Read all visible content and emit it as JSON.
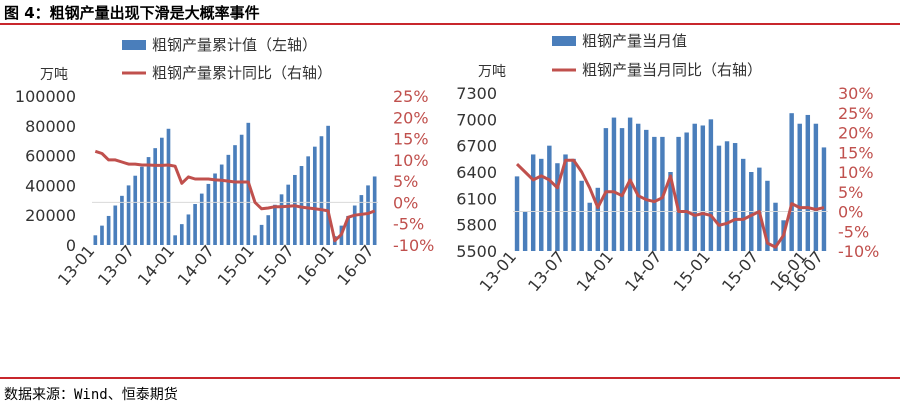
{
  "page": {
    "figure_title": "图 4：粗钢产量出现下滑是大概率事件",
    "source": "数据来源：Wind、恒泰期货",
    "colors": {
      "bar": "#4a7ebb",
      "line": "#c0504d",
      "rule": "#c8262c",
      "axis_right": "#c0504d"
    }
  },
  "chart_data": [
    {
      "type": "bar",
      "unit_left": "万吨",
      "x_tick_labels": [
        "13-01",
        "13-07",
        "14-01",
        "14-07",
        "15-01",
        "15-07",
        "16-01",
        "16-07"
      ],
      "y_left": {
        "min": 0,
        "max": 100000,
        "ticks": [
          "100000",
          "80000",
          "60000",
          "40000",
          "20000",
          "0"
        ]
      },
      "y_right": {
        "min": -10,
        "max": 25,
        "ticks": [
          "25%",
          "20%",
          "15%",
          "10%",
          "5%",
          "0%",
          "-5%",
          "-10%"
        ]
      },
      "legend": [
        "粗钢产量累计值（左轴）",
        "粗钢产量累计同比（右轴）"
      ],
      "legend_position": "top",
      "grid": false,
      "series": [
        {
          "name": "粗钢产量累计值（左轴）",
          "kind": "bar",
          "axis": "left",
          "values": [
            6500,
            13000,
            19500,
            26500,
            33000,
            40000,
            46500,
            52500,
            59000,
            65000,
            72000,
            78000,
            6500,
            14000,
            20500,
            27500,
            34500,
            41000,
            48000,
            54000,
            60500,
            67000,
            74000,
            82000,
            6500,
            13500,
            20000,
            27000,
            34000,
            40500,
            47000,
            53000,
            59500,
            66000,
            73000,
            80000,
            6000,
            13000,
            19500,
            26500,
            33500,
            40000,
            46000
          ]
        },
        {
          "name": "粗钢产量累计同比（右轴）",
          "kind": "line",
          "axis": "right",
          "values": [
            12,
            11.5,
            10,
            10,
            9.5,
            9,
            9,
            8.8,
            8.8,
            8.7,
            8.7,
            8.8,
            8.5,
            4.5,
            6,
            5.5,
            5.5,
            5.5,
            5.3,
            5.2,
            5,
            4.8,
            4.8,
            4.8,
            0,
            -1.5,
            -1.3,
            -1,
            -1,
            -0.9,
            -0.8,
            -1.1,
            -1.3,
            -1.5,
            -1.7,
            -2,
            -9,
            -7.5,
            -3.5,
            -3,
            -2.8,
            -2.6,
            -2
          ]
        }
      ]
    },
    {
      "type": "bar",
      "unit_left": "万吨",
      "x_tick_labels": [
        "13-01",
        "13-07",
        "14-01",
        "14-07",
        "15-01",
        "15-07",
        "16-01",
        "16-07"
      ],
      "y_left": {
        "min": 5500,
        "max": 7300,
        "ticks": [
          "7300",
          "7000",
          "6700",
          "6400",
          "6100",
          "5800",
          "5500"
        ]
      },
      "y_right": {
        "min": -10,
        "max": 30,
        "ticks": [
          "30%",
          "25%",
          "20%",
          "15%",
          "10%",
          "5%",
          "0%",
          "-5%",
          "-10%"
        ]
      },
      "legend": [
        "粗钢产量当月值",
        "粗钢产量当月同比（右轴）"
      ],
      "legend_position": "top",
      "grid": false,
      "series": [
        {
          "name": "粗钢产量当月值",
          "kind": "bar",
          "axis": "left",
          "values": [
            6350,
            5950,
            6600,
            6550,
            6700,
            6500,
            6600,
            6550,
            6300,
            6050,
            6220,
            6900,
            7020,
            6900,
            7020,
            6950,
            6880,
            6800,
            6800,
            6400,
            6800,
            6850,
            6950,
            6930,
            7000,
            6700,
            6750,
            6730,
            6550,
            6400,
            6450,
            6300,
            6050,
            5850,
            7070,
            6950,
            7050,
            6950,
            6680
          ]
        },
        {
          "name": "粗钢产量当月同比（右轴）",
          "kind": "line",
          "axis": "right",
          "values": [
            12,
            10,
            8,
            9,
            8,
            6,
            13,
            13,
            10,
            6,
            1,
            5,
            5,
            4,
            8,
            4,
            3,
            2.5,
            3.5,
            9,
            0,
            0,
            -1,
            -0.5,
            -1,
            -3.5,
            -3,
            -2,
            -2,
            -1,
            0,
            -8,
            -9,
            -6,
            2,
            1,
            1,
            0.5,
            1
          ]
        }
      ]
    }
  ]
}
